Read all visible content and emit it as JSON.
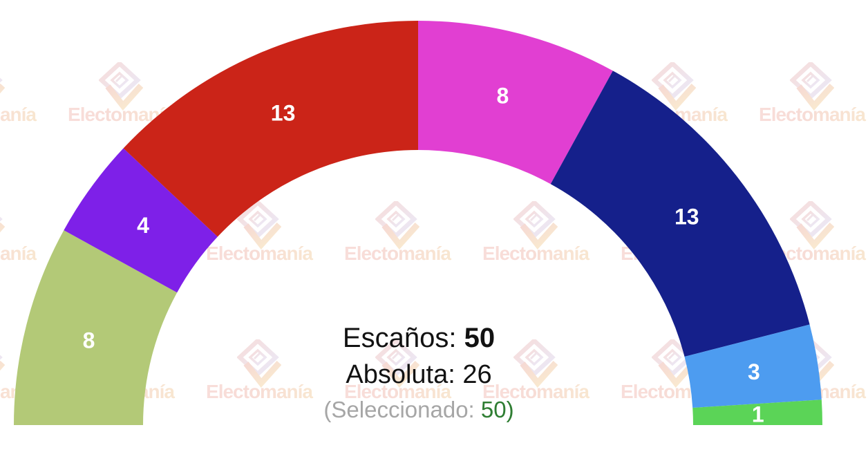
{
  "watermark": {
    "text": "Electomanía"
  },
  "chart_data": {
    "type": "pie",
    "variant": "half-donut-hemicycle",
    "title": "Escaños: 50",
    "total_seats": 50,
    "absolute_majority": 26,
    "selected_seats": 50,
    "legend_position": "none",
    "label_color": "#ffffff",
    "start_angle_deg": 180,
    "end_angle_deg": 0,
    "series": [
      {
        "label": "8",
        "value": 8,
        "color": "#b3c977"
      },
      {
        "label": "4",
        "value": 4,
        "color": "#7e20e8"
      },
      {
        "label": "13",
        "value": 13,
        "color": "#cb2418"
      },
      {
        "label": "8",
        "value": 8,
        "color": "#e13fd2"
      },
      {
        "label": "13",
        "value": 13,
        "color": "#15208b"
      },
      {
        "label": "3",
        "value": 3,
        "color": "#4d9cf0"
      },
      {
        "label": "1",
        "value": 1,
        "color": "#5bd457"
      }
    ]
  },
  "center_text": {
    "seats_label": "Escaños:",
    "seats_value": "50",
    "absolute_label": "Absoluta:",
    "absolute_value": "26",
    "selected_prefix": "(Seleccionado:",
    "selected_value": "50)",
    "selected_value_color": "#2e7d32",
    "muted_color": "#a6a6a6"
  }
}
